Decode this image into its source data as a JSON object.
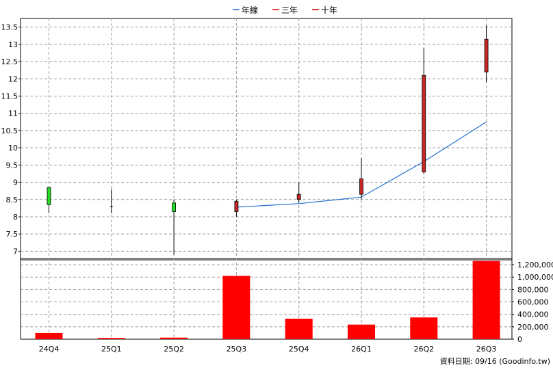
{
  "legend": [
    {
      "label": "年線",
      "color": "#1f6fd1"
    },
    {
      "label": "三年",
      "color": "#e00000"
    },
    {
      "label": "十年",
      "color": "#c00000"
    }
  ],
  "footer": "資料日期: 09/16  (Goodinfo.tw)",
  "colors": {
    "up_candle": "#c62828",
    "down_candle": "#22dd22",
    "candle_border": "#000000",
    "wick": "#000000",
    "line": "#1f6fd1",
    "volume": "#ff0000",
    "grid": "#999999"
  },
  "chart_data": [
    {
      "type": "candlestick",
      "categories": [
        "24Q4",
        "25Q1",
        "25Q2",
        "25Q3",
        "25Q4",
        "26Q1",
        "26Q2",
        "26Q3"
      ],
      "series": [
        {
          "open": [
            8.35,
            8.3,
            8.15,
            8.15,
            8.5,
            8.65,
            9.3,
            12.2
          ],
          "high": [
            8.85,
            8.8,
            8.5,
            8.5,
            9.0,
            9.7,
            12.9,
            13.55
          ],
          "low": [
            8.1,
            8.1,
            6.9,
            8.0,
            8.4,
            8.5,
            9.25,
            11.9
          ],
          "close": [
            8.85,
            8.3,
            8.4,
            8.45,
            8.65,
            9.1,
            12.1,
            13.15
          ]
        },
        {
          "name": "年線",
          "x": [
            "25Q3",
            "25Q4",
            "26Q1",
            "26Q2",
            "26Q3"
          ],
          "values": [
            8.28,
            8.38,
            8.57,
            9.6,
            10.75
          ]
        }
      ],
      "yticks": [
        "7",
        "7.5",
        "8",
        "8.5",
        "9",
        "9.5",
        "10",
        "10.5",
        "11",
        "11.5",
        "12",
        "12.5",
        "13",
        "13.5"
      ],
      "ylim": [
        6.75,
        13.75
      ],
      "grid": true,
      "legend_position": "top-center"
    },
    {
      "type": "bar",
      "categories": [
        "24Q4",
        "25Q1",
        "25Q2",
        "25Q3",
        "25Q4",
        "26Q1",
        "26Q2",
        "26Q3"
      ],
      "values": [
        100000,
        20000,
        25000,
        1020000,
        330000,
        235000,
        350000,
        1260000
      ],
      "yticks": [
        "0",
        "200,000",
        "400,000",
        "600,000",
        "800,000",
        "1,000,000",
        "1,200,000"
      ],
      "ylim": [
        0,
        1300000
      ],
      "grid": true
    }
  ]
}
